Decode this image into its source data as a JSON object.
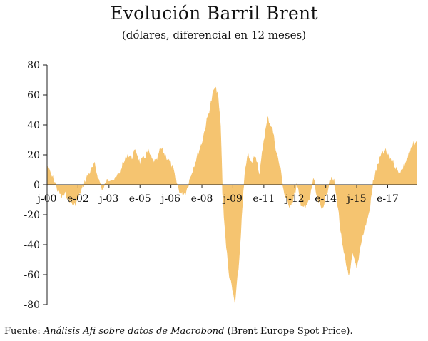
{
  "header": {
    "title": "Evolución Barril Brent",
    "subtitle": "(dólares, diferencial en 12 meses)"
  },
  "footer": {
    "source_prefix": "Fuente: ",
    "source_italic": "Análisis Afi sobre datos de Macrobond",
    "source_suffix": " (Brent Europe Spot Price)."
  },
  "colors": {
    "area": "#f5c470",
    "axis": "#222222"
  },
  "chart_data": {
    "type": "area",
    "title": "Evolución Barril Brent",
    "subtitle": "(dólares, diferencial en 12 meses)",
    "xlabel": "",
    "ylabel": "",
    "ylim": [
      -80,
      80
    ],
    "y_ticks": [
      80,
      60,
      40,
      20,
      0,
      -20,
      -40,
      -60,
      -80
    ],
    "y_tick_labels": [
      "80",
      "60",
      "40",
      "20",
      "0",
      "-20",
      "-40",
      "-60",
      "-80"
    ],
    "x_tick_labels": [
      {
        "label": "j-00",
        "t": 2000.5
      },
      {
        "label": "e-02",
        "t": 2002.0
      },
      {
        "label": "j-03",
        "t": 2003.5
      },
      {
        "label": "e-05",
        "t": 2005.0
      },
      {
        "label": "j-06",
        "t": 2006.5
      },
      {
        "label": "e-08",
        "t": 2008.0
      },
      {
        "label": "j-09",
        "t": 2009.5
      },
      {
        "label": "e-11",
        "t": 2011.0
      },
      {
        "label": "j-12",
        "t": 2012.5
      },
      {
        "label": "e-14",
        "t": 2014.0
      },
      {
        "label": "j-15",
        "t": 2015.5
      },
      {
        "label": "e-17",
        "t": 2017.0
      }
    ],
    "xlim": [
      2000.5,
      2018.4
    ],
    "grid": false,
    "series": [
      {
        "x": [
          2000.5,
          2000.6,
          2000.7,
          2000.9,
          2001.0,
          2001.2,
          2001.4,
          2001.6,
          2001.8,
          2002.0,
          2002.2,
          2002.4,
          2002.6,
          2002.8,
          2003.0,
          2003.2,
          2003.4,
          2003.6,
          2003.8,
          2004.0,
          2004.2,
          2004.4,
          2004.6,
          2004.8,
          2005.0,
          2005.2,
          2005.4,
          2005.6,
          2005.8,
          2006.0,
          2006.2,
          2006.4,
          2006.6,
          2006.8,
          2007.0,
          2007.2,
          2007.4,
          2007.6,
          2007.8,
          2008.0,
          2008.2,
          2008.4,
          2008.6,
          2008.75,
          2008.9,
          2009.0,
          2009.15,
          2009.3,
          2009.45,
          2009.6,
          2009.8,
          2010.0,
          2010.2,
          2010.4,
          2010.6,
          2010.8,
          2011.0,
          2011.2,
          2011.4,
          2011.6,
          2011.8,
          2012.0,
          2012.2,
          2012.4,
          2012.6,
          2012.8,
          2013.0,
          2013.2,
          2013.4,
          2013.6,
          2013.8,
          2014.0,
          2014.2,
          2014.4,
          2014.6,
          2014.8,
          2015.0,
          2015.15,
          2015.3,
          2015.5,
          2015.7,
          2015.9,
          2016.1,
          2016.3,
          2016.5,
          2016.7,
          2016.9,
          2017.1,
          2017.3,
          2017.5,
          2017.7,
          2017.9,
          2018.1,
          2018.3,
          2018.4
        ],
        "y": [
          13,
          9,
          6,
          1,
          -3,
          -8,
          -6,
          -10,
          -14,
          -9,
          -2,
          4,
          9,
          13,
          3,
          -3,
          2,
          5,
          3,
          8,
          14,
          20,
          18,
          23,
          14,
          18,
          22,
          16,
          15,
          24,
          20,
          16,
          10,
          0,
          -6,
          -5,
          3,
          12,
          20,
          28,
          40,
          52,
          64,
          62,
          40,
          -5,
          -35,
          -58,
          -68,
          -79,
          -50,
          -5,
          20,
          14,
          20,
          6,
          30,
          44,
          38,
          22,
          10,
          -6,
          -14,
          -10,
          0,
          -12,
          -16,
          -10,
          4,
          -10,
          -16,
          -8,
          4,
          2,
          -15,
          -40,
          -54,
          -60,
          -46,
          -56,
          -38,
          -28,
          -18,
          2,
          12,
          20,
          22,
          18,
          14,
          8,
          10,
          16,
          22,
          28,
          29
        ]
      }
    ]
  }
}
